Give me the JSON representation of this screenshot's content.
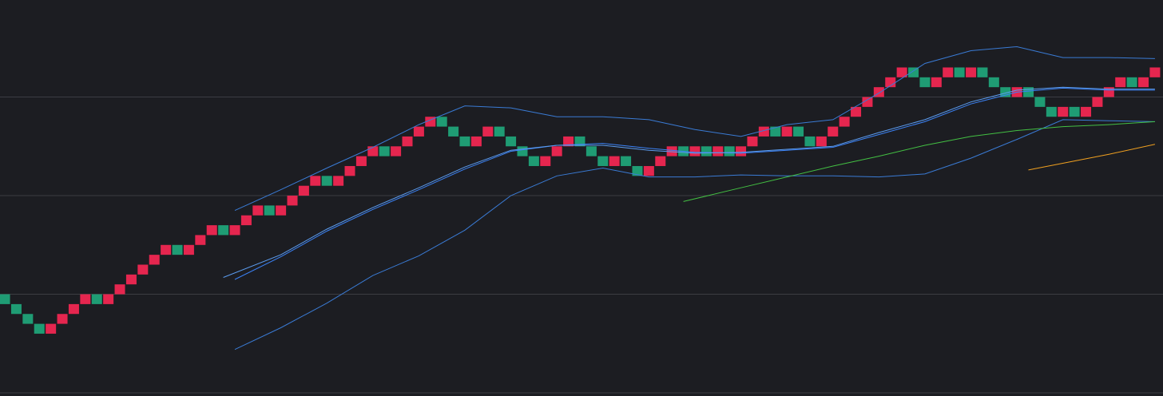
{
  "chart_data": {
    "type": "renko",
    "brick_size": 1,
    "xlim": [
      -0.42,
      100.7
    ],
    "ylim": [
      -0.32,
      39.84
    ],
    "grid": true,
    "gridlines": [
      0,
      10,
      20,
      30
    ],
    "series": [
      {
        "color": "#e5264f",
        "values": [
          null,
          null,
          null,
          null,
          7,
          8,
          9,
          10,
          null,
          10,
          11,
          12,
          13,
          14,
          15,
          null,
          15,
          16,
          17,
          null,
          17,
          18,
          19,
          null,
          19,
          20,
          21,
          22,
          null,
          22,
          23,
          24,
          25,
          null,
          25,
          26,
          27,
          28,
          null,
          null,
          null,
          26,
          27,
          null,
          null,
          null,
          null,
          24,
          25,
          26,
          null,
          null,
          null,
          24,
          null,
          null,
          23,
          24,
          25,
          null,
          25,
          null,
          25,
          null,
          25,
          26,
          27,
          null,
          27,
          null,
          null,
          26,
          27,
          28,
          29,
          30,
          31,
          32,
          33,
          null,
          null,
          32,
          33,
          null,
          33,
          null,
          null,
          null,
          31,
          null,
          null,
          null,
          29,
          null,
          29,
          30,
          31,
          32,
          null,
          32,
          33
        ]
      },
      {
        "color": "#1f9c74",
        "values": [
          10,
          9,
          8,
          7,
          null,
          null,
          null,
          null,
          10,
          null,
          null,
          null,
          null,
          null,
          null,
          15,
          null,
          null,
          null,
          17,
          null,
          null,
          null,
          19,
          null,
          null,
          null,
          null,
          22,
          null,
          null,
          null,
          null,
          25,
          null,
          null,
          null,
          null,
          28,
          27,
          26,
          null,
          null,
          27,
          26,
          25,
          24,
          null,
          null,
          null,
          26,
          25,
          24,
          null,
          24,
          23,
          null,
          null,
          null,
          25,
          null,
          25,
          null,
          25,
          null,
          null,
          null,
          27,
          null,
          27,
          26,
          null,
          null,
          null,
          null,
          null,
          null,
          null,
          null,
          33,
          32,
          null,
          null,
          33,
          null,
          33,
          32,
          31,
          null,
          31,
          30,
          29,
          null,
          29,
          null,
          null,
          null,
          null,
          32,
          null,
          null
        ]
      }
    ],
    "lines": [
      {
        "color": "#3a7bd5",
        "x": [
          20,
          24,
          28,
          32,
          36,
          40,
          44,
          48,
          52,
          56,
          60,
          64,
          68,
          72,
          76,
          80,
          84,
          88,
          92,
          96,
          100
        ],
        "values": [
          18.5,
          20.6,
          22.8,
          24.9,
          27.2,
          29.1,
          28.9,
          28.0,
          28.0,
          27.7,
          26.7,
          26.0,
          27.2,
          27.7,
          30.4,
          33.4,
          34.7,
          35.1,
          34.0,
          34.0,
          33.9
        ]
      },
      {
        "color": "#3b82f6",
        "x": [
          20,
          24,
          28,
          32,
          36,
          40,
          44,
          48,
          52,
          56,
          60,
          64,
          68,
          72,
          76,
          80,
          84,
          88,
          92,
          96,
          100
        ],
        "values": [
          11.5,
          13.8,
          16.4,
          18.6,
          20.6,
          22.7,
          24.5,
          25.1,
          25.3,
          24.8,
          24.4,
          24.3,
          24.6,
          24.9,
          26.2,
          27.5,
          29.3,
          30.5,
          30.9,
          30.7,
          30.7
        ]
      },
      {
        "color": "#5b9cf0",
        "x": [
          19,
          24,
          28,
          32,
          36,
          40,
          44,
          48,
          52,
          56,
          60,
          64,
          68,
          72,
          76,
          80,
          84,
          88,
          92,
          96,
          100
        ],
        "values": [
          11.7,
          14.0,
          16.6,
          18.8,
          20.8,
          22.9,
          24.6,
          25.1,
          25.1,
          24.6,
          24.3,
          24.4,
          24.7,
          25.0,
          26.4,
          27.7,
          29.5,
          30.7,
          31.0,
          30.8,
          30.8
        ]
      },
      {
        "color": "#3a7bd5",
        "x": [
          20,
          24,
          28,
          32,
          36,
          40,
          44,
          48,
          52,
          56,
          60,
          64,
          68,
          72,
          76,
          80,
          84,
          88,
          92,
          96,
          100
        ],
        "values": [
          4.4,
          6.6,
          9.1,
          11.9,
          13.9,
          16.5,
          20.0,
          22.0,
          22.8,
          21.9,
          21.9,
          22.1,
          22.0,
          22.0,
          21.9,
          22.2,
          23.8,
          25.7,
          27.7,
          27.6,
          27.5
        ]
      },
      {
        "color": "#43c043",
        "x": [
          59,
          64,
          68,
          72,
          76,
          80,
          84,
          88,
          92,
          96,
          100
        ],
        "values": [
          19.4,
          20.8,
          21.9,
          23.0,
          24.0,
          25.1,
          26.0,
          26.6,
          27.0,
          27.2,
          27.5
        ]
      },
      {
        "color": "#f0a020",
        "x": [
          89,
          96,
          100
        ],
        "values": [
          22.6,
          24.2,
          25.2
        ]
      }
    ]
  }
}
